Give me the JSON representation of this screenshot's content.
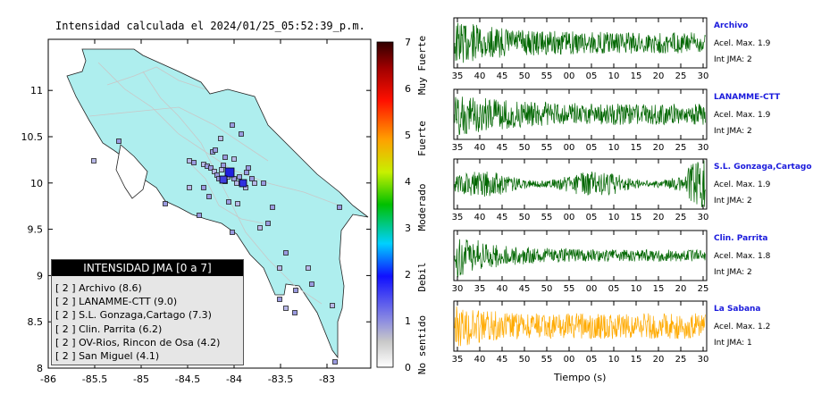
{
  "title": "Intensidad calculada el 2024/01/25_05:52:39_p.m.",
  "map": {
    "x_ticks": [
      "-86",
      "-85.5",
      "-85",
      "-84.5",
      "-84",
      "-83.5",
      "-83"
    ],
    "y_ticks": [
      "11",
      "10.5",
      "10",
      "9.5",
      "9",
      "8.5",
      "8"
    ],
    "land_color": "#aeeeee"
  },
  "legend": {
    "title": "INTENSIDAD JMA [0 a 7]",
    "items": [
      {
        "level": "[ 2 ]",
        "station": "Archivo (8.6)"
      },
      {
        "level": "[ 2 ]",
        "station": "LANAMME-CTT (9.0)"
      },
      {
        "level": "[ 2 ]",
        "station": "S.L. Gonzaga,Cartago (7.3)"
      },
      {
        "level": "[ 2 ]",
        "station": "Clin. Parrita (6.2)"
      },
      {
        "level": "[ 2 ]",
        "station": "OV-Rios, Rincon de Osa (4.2)"
      },
      {
        "level": "[ 2 ]",
        "station": "San Miguel (4.1)"
      }
    ]
  },
  "colorbar": {
    "ticks": [
      "0",
      "1",
      "2",
      "3",
      "4",
      "5",
      "6",
      "7"
    ],
    "categories": [
      "No sentido",
      "Debil",
      "Moderado",
      "Fuerte",
      "Muy Fuerte"
    ]
  },
  "waveforms": {
    "xlabel": "Tiempo (s)",
    "panels": [
      {
        "name": "Archivo",
        "accel": "Acel. Max. 1.9",
        "jma": "Int JMA: 2",
        "color": "#006600",
        "ticks": [
          "35",
          "40",
          "45",
          "50",
          "55",
          "00",
          "05",
          "10",
          "15",
          "20",
          "25",
          "30"
        ]
      },
      {
        "name": "LANAMME-CTT",
        "accel": "Acel. Max. 1.9",
        "jma": "Int JMA: 2",
        "color": "#006600",
        "ticks": [
          "35",
          "40",
          "45",
          "50",
          "55",
          "00",
          "05",
          "10",
          "15",
          "20",
          "25",
          "30"
        ]
      },
      {
        "name": "S.L. Gonzaga,Cartago",
        "accel": "Acel. Max. 1.9",
        "jma": "Int JMA: 2",
        "color": "#006600",
        "ticks": [
          "35",
          "40",
          "45",
          "50",
          "55",
          "00",
          "05",
          "10",
          "15",
          "20",
          "25",
          "30"
        ]
      },
      {
        "name": "Clin. Parrita",
        "accel": "Acel. Max. 1.8",
        "jma": "Int JMA: 2",
        "color": "#006600",
        "ticks": [
          "30",
          "35",
          "40",
          "45",
          "50",
          "55",
          "00",
          "05",
          "10",
          "15",
          "20",
          "25"
        ]
      },
      {
        "name": "La Sabana",
        "accel": "Acel. Max. 1.2",
        "jma": "Int JMA: 1",
        "color": "#ffaa00",
        "ticks": [
          "35",
          "40",
          "45",
          "50",
          "55",
          "00",
          "05",
          "10",
          "15",
          "20",
          "25",
          "30"
        ]
      }
    ]
  }
}
